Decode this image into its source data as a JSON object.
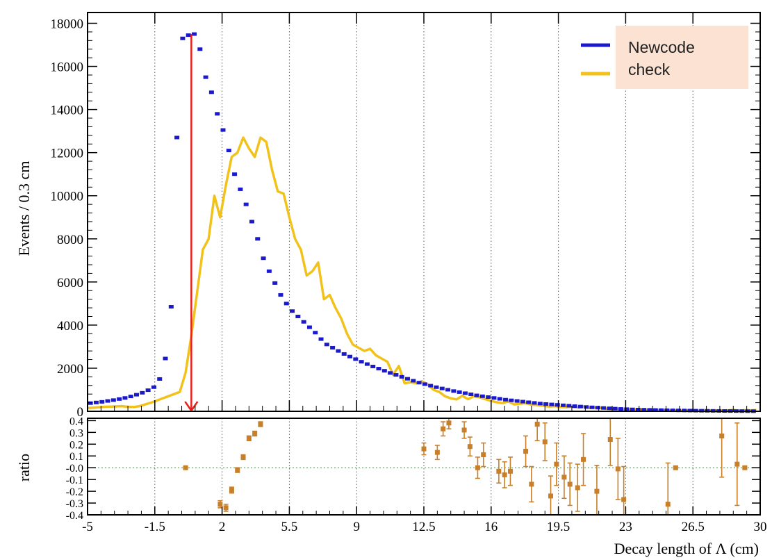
{
  "colors": {
    "newcode": "#1a1acc",
    "check": "#f2c21b",
    "ratio": "#c87f2a",
    "arrow": "#e8201a",
    "legend_bg": "#fbe2d2",
    "zero_line": "#3fae3f"
  },
  "chart_data": [
    {
      "type": "line",
      "panel": "main",
      "xlabel": "",
      "ylabel": "Events / 0.3 cm",
      "xlim": [
        -5,
        30
      ],
      "ylim": [
        0,
        18500
      ],
      "x_ticks": [
        -5,
        -1.5,
        2,
        5.5,
        9,
        12.5,
        16,
        19.5,
        23,
        26.5,
        30
      ],
      "y_ticks": [
        0,
        2000,
        4000,
        6000,
        8000,
        10000,
        12000,
        14000,
        16000,
        18000
      ],
      "grid": "vertical dotted",
      "legend_position": "top-right",
      "legend": [
        "Newcode",
        "check"
      ],
      "annotations": [
        {
          "type": "arrow",
          "x": 0.4,
          "y_from": 17500,
          "y_to": 0,
          "direction": "down"
        }
      ],
      "series": [
        {
          "name": "Newcode",
          "style": "markers",
          "x": [
            -4.85,
            -4.55,
            -4.25,
            -3.95,
            -3.65,
            -3.35,
            -3.05,
            -2.75,
            -2.45,
            -2.15,
            -1.85,
            -1.55,
            -1.25,
            -0.95,
            -0.65,
            -0.35,
            -0.05,
            0.25,
            0.55,
            0.85,
            1.15,
            1.45,
            1.75,
            2.05,
            2.35,
            2.65,
            2.95,
            3.25,
            3.55,
            3.85,
            4.15,
            4.45,
            4.75,
            5.05,
            5.35,
            5.65,
            5.95,
            6.25,
            6.55,
            6.85,
            7.15,
            7.45,
            7.75,
            8.05,
            8.35,
            8.65,
            8.95,
            9.25,
            9.55,
            9.85,
            10.15,
            10.45,
            10.75,
            11.05,
            11.35,
            11.65,
            11.95,
            12.25,
            12.55,
            12.85,
            13.15,
            13.45,
            13.75,
            14.05,
            14.35,
            14.65,
            14.95,
            15.25,
            15.55,
            15.85,
            16.15,
            16.45,
            16.75,
            17.05,
            17.35,
            17.65,
            17.95,
            18.25,
            18.55,
            18.85,
            19.15,
            19.45,
            19.75,
            20.05,
            20.35,
            20.65,
            20.95,
            21.25,
            21.55,
            21.85,
            22.15,
            22.45,
            22.75,
            23.05,
            23.35,
            23.65,
            23.95,
            24.25,
            24.55,
            24.85,
            25.15,
            25.45,
            25.75,
            26.05,
            26.35,
            26.65,
            26.95,
            27.25,
            27.55,
            27.85,
            28.15,
            28.45,
            28.75,
            29.05,
            29.35,
            29.65
          ],
          "y": [
            380,
            410,
            440,
            480,
            520,
            570,
            620,
            690,
            770,
            860,
            980,
            1120,
            1500,
            2450,
            4850,
            12700,
            17300,
            17450,
            17500,
            16800,
            15500,
            14800,
            13800,
            13050,
            12100,
            11000,
            10300,
            9600,
            8800,
            8000,
            7100,
            6500,
            5950,
            5400,
            5000,
            4650,
            4400,
            4150,
            3900,
            3650,
            3350,
            3100,
            2950,
            2800,
            2660,
            2540,
            2420,
            2300,
            2190,
            2080,
            1980,
            1880,
            1780,
            1690,
            1600,
            1510,
            1420,
            1330,
            1260,
            1190,
            1120,
            1060,
            1000,
            940,
            890,
            840,
            790,
            740,
            700,
            660,
            620,
            580,
            540,
            510,
            480,
            450,
            420,
            390,
            360,
            340,
            320,
            300,
            280,
            260,
            240,
            220,
            200,
            185,
            170,
            155,
            140,
            125,
            110,
            100,
            90,
            82,
            75,
            68,
            62,
            56,
            51,
            46,
            42,
            38,
            34,
            30,
            27,
            24,
            21,
            18,
            16,
            14,
            12,
            10,
            8,
            6
          ]
        },
        {
          "name": "check",
          "style": "line",
          "x": [
            -5,
            -4.7,
            -4.4,
            -4.1,
            -3.8,
            -3.5,
            -3.2,
            -2.9,
            -2.6,
            -2.3,
            -2.0,
            -1.7,
            -1.4,
            -1.1,
            -0.8,
            -0.5,
            -0.2,
            0.1,
            0.4,
            0.7,
            1.0,
            1.3,
            1.6,
            1.9,
            2.2,
            2.5,
            2.8,
            3.1,
            3.4,
            3.7,
            4.0,
            4.3,
            4.6,
            4.9,
            5.2,
            5.5,
            5.8,
            6.1,
            6.4,
            6.7,
            7.0,
            7.3,
            7.6,
            7.9,
            8.2,
            8.5,
            8.8,
            9.1,
            9.4,
            9.7,
            10.0,
            10.3,
            10.6,
            10.9,
            11.2,
            11.5,
            11.8,
            12.1,
            12.4,
            12.7,
            13.0,
            13.3,
            13.6,
            13.9,
            14.2,
            14.5,
            14.8,
            15.1,
            15.4,
            15.7,
            16.0,
            16.3,
            16.6,
            16.9,
            17.2,
            17.5,
            17.8,
            18.1,
            18.4,
            18.7,
            19.0,
            19.3,
            19.6,
            19.9,
            20.2,
            20.5,
            20.8,
            21.1,
            21.4,
            21.7,
            22.0,
            22.3,
            22.6,
            22.9,
            23.2,
            23.5,
            23.8,
            24.1,
            24.4,
            24.7,
            25.0,
            25.3,
            25.6,
            25.9,
            26.2,
            26.5,
            26.8,
            27.1,
            27.4,
            27.7,
            28.0,
            28.3,
            28.6,
            28.9,
            29.2,
            29.5,
            29.8
          ],
          "y": [
            150,
            170,
            190,
            210,
            220,
            230,
            240,
            210,
            200,
            240,
            320,
            400,
            500,
            600,
            700,
            800,
            900,
            1800,
            3500,
            5500,
            7500,
            8000,
            10000,
            9000,
            10500,
            11800,
            12000,
            12700,
            12200,
            11800,
            12700,
            12500,
            11200,
            10200,
            10100,
            9000,
            8000,
            7500,
            6300,
            6500,
            6900,
            5200,
            5400,
            4800,
            4300,
            3600,
            3100,
            2950,
            2800,
            2900,
            2600,
            2450,
            2300,
            1700,
            2100,
            1300,
            1350,
            1300,
            1400,
            1250,
            1000,
            900,
            700,
            600,
            550,
            720,
            560,
            700,
            650,
            560,
            480,
            420,
            380,
            460,
            320,
            350,
            380,
            310,
            290,
            260,
            220,
            240,
            200,
            190,
            210,
            170,
            230,
            150,
            180,
            160,
            120,
            100,
            110,
            90,
            80,
            70,
            60,
            55,
            50,
            60,
            45,
            40,
            35,
            30,
            40,
            35,
            30,
            50,
            40,
            30,
            35,
            40,
            60,
            30,
            50,
            40,
            60
          ]
        }
      ]
    },
    {
      "type": "scatter",
      "panel": "ratio",
      "xlabel": "Decay length of  Λ (cm)",
      "ylabel": "ratio",
      "xlim": [
        -5,
        30
      ],
      "ylim": [
        -0.4,
        0.42
      ],
      "x_ticks": [
        -5,
        -1.5,
        2,
        5.5,
        9,
        12.5,
        16,
        19.5,
        23,
        26.5,
        30
      ],
      "y_ticks": [
        -0.4,
        -0.3,
        -0.2,
        -0.1,
        0.0,
        0.1,
        0.2,
        0.3,
        0.4
      ],
      "y_tick_labels": [
        "-0.4",
        "-0.3",
        "-0.2",
        "-0.1",
        "-0.0",
        "0.1",
        "0.2",
        "0.3",
        "0.4"
      ],
      "reference_line": 0,
      "grid": "vertical dotted",
      "series": [
        {
          "style": "markers with error bars",
          "points": [
            {
              "x": 0.1,
              "y": 0.0,
              "err": 0.005
            },
            {
              "x": 1.9,
              "y": -0.31,
              "err": 0.03
            },
            {
              "x": 2.2,
              "y": -0.34,
              "err": 0.03
            },
            {
              "x": 2.5,
              "y": -0.19,
              "err": 0.025
            },
            {
              "x": 2.8,
              "y": -0.02,
              "err": 0.02
            },
            {
              "x": 3.1,
              "y": 0.09,
              "err": 0.02
            },
            {
              "x": 3.4,
              "y": 0.25,
              "err": 0.02
            },
            {
              "x": 3.7,
              "y": 0.29,
              "err": 0.02
            },
            {
              "x": 4.0,
              "y": 0.37,
              "err": 0.02
            },
            {
              "x": 12.5,
              "y": 0.16,
              "err": 0.05
            },
            {
              "x": 13.2,
              "y": 0.13,
              "err": 0.06
            },
            {
              "x": 13.5,
              "y": 0.33,
              "err": 0.06
            },
            {
              "x": 13.8,
              "y": 0.38,
              "err": 0.05
            },
            {
              "x": 14.6,
              "y": 0.32,
              "err": 0.07
            },
            {
              "x": 14.9,
              "y": 0.18,
              "err": 0.08
            },
            {
              "x": 15.3,
              "y": 0.0,
              "err": 0.09
            },
            {
              "x": 15.6,
              "y": 0.11,
              "err": 0.1
            },
            {
              "x": 16.4,
              "y": -0.03,
              "err": 0.1
            },
            {
              "x": 16.7,
              "y": -0.06,
              "err": 0.11
            },
            {
              "x": 17.0,
              "y": -0.03,
              "err": 0.12
            },
            {
              "x": 17.8,
              "y": 0.14,
              "err": 0.13
            },
            {
              "x": 18.1,
              "y": -0.14,
              "err": 0.15
            },
            {
              "x": 18.4,
              "y": 0.37,
              "err": 0.14
            },
            {
              "x": 18.8,
              "y": 0.22,
              "err": 0.16
            },
            {
              "x": 19.1,
              "y": -0.24,
              "err": 0.17
            },
            {
              "x": 19.4,
              "y": 0.03,
              "err": 0.18
            },
            {
              "x": 19.8,
              "y": -0.08,
              "err": 0.18
            },
            {
              "x": 20.1,
              "y": -0.14,
              "err": 0.18
            },
            {
              "x": 20.5,
              "y": -0.17,
              "err": 0.2
            },
            {
              "x": 20.8,
              "y": 0.07,
              "err": 0.22
            },
            {
              "x": 21.5,
              "y": -0.2,
              "err": 0.22
            },
            {
              "x": 22.2,
              "y": 0.24,
              "err": 0.22
            },
            {
              "x": 22.6,
              "y": -0.01,
              "err": 0.26
            },
            {
              "x": 22.9,
              "y": -0.27,
              "err": 0.28
            },
            {
              "x": 25.2,
              "y": -0.31,
              "err": 0.35
            },
            {
              "x": 25.6,
              "y": 0.0,
              "err": 0.01
            },
            {
              "x": 28.0,
              "y": 0.27,
              "err": 0.35
            },
            {
              "x": 28.8,
              "y": 0.03,
              "err": 0.35
            },
            {
              "x": 29.2,
              "y": 0.0,
              "err": 0.01
            }
          ]
        }
      ]
    }
  ]
}
